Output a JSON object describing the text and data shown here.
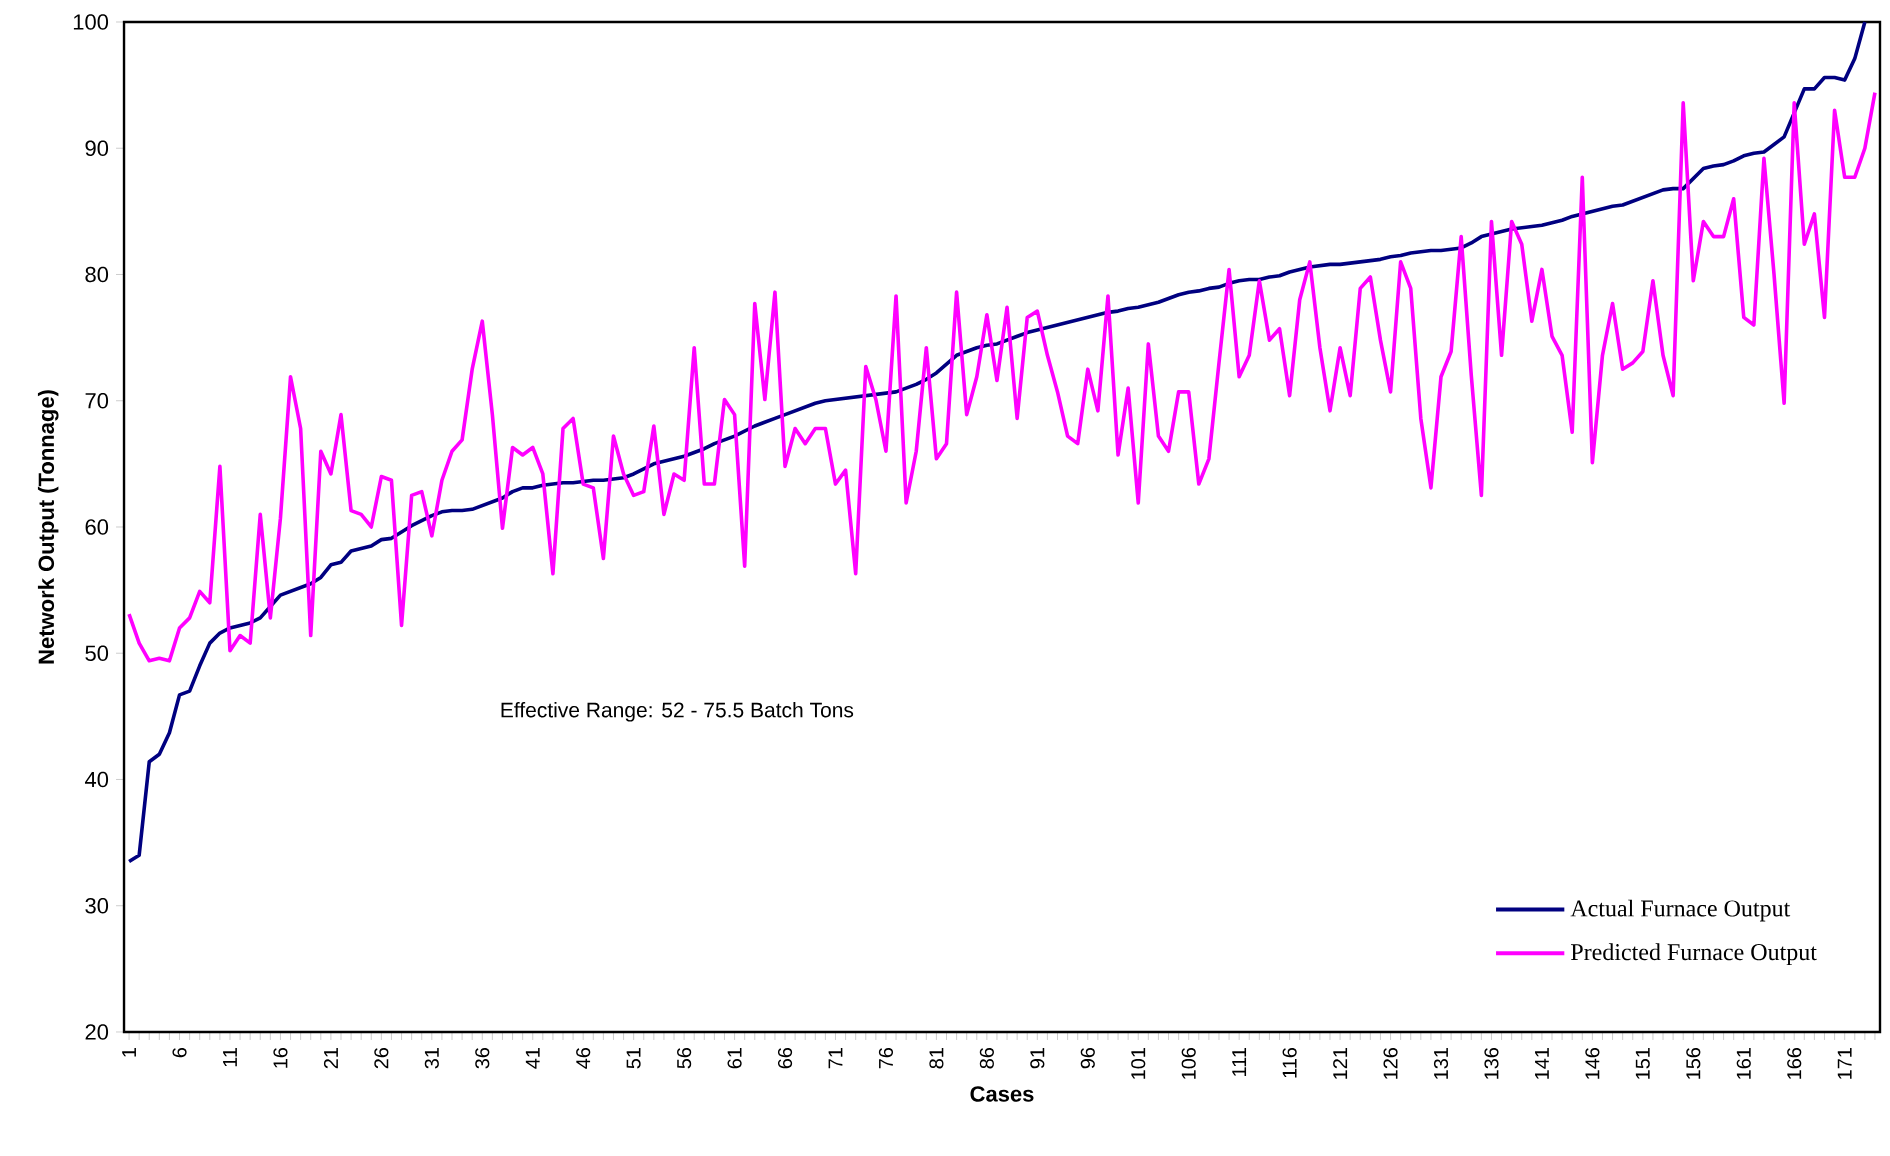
{
  "chart_data": {
    "type": "line",
    "xlabel": "Cases",
    "ylabel": "Network Output (Tonnage)",
    "categories": [
      "1",
      null,
      null,
      null,
      null,
      "6",
      null,
      null,
      null,
      null,
      "11",
      null,
      null,
      null,
      null,
      "16",
      null,
      null,
      null,
      null,
      "21",
      null,
      null,
      null,
      null,
      "26",
      null,
      null,
      null,
      null,
      "31",
      null,
      null,
      null,
      null,
      "36",
      null,
      null,
      null,
      null,
      "41",
      null,
      null,
      null,
      null,
      "46",
      null,
      null,
      null,
      null,
      "51",
      null,
      null,
      null,
      null,
      "56",
      null,
      null,
      null,
      null,
      "61",
      null,
      null,
      null,
      null,
      "66",
      null,
      null,
      null,
      null,
      "71",
      null,
      null,
      null,
      null,
      "76",
      null,
      null,
      null,
      null,
      "81",
      null,
      null,
      null,
      null,
      "86",
      null,
      null,
      null,
      null,
      "91",
      null,
      null,
      null,
      null,
      "96",
      null,
      null,
      null,
      null,
      "101",
      null,
      null,
      null,
      null,
      "106",
      null,
      null,
      null,
      null,
      "111",
      null,
      null,
      null,
      null,
      "116",
      null,
      null,
      null,
      null,
      "121",
      null,
      null,
      null,
      null,
      "126",
      null,
      null,
      null,
      null,
      "131",
      null,
      null,
      null,
      null,
      "136",
      null,
      null,
      null,
      null,
      "141",
      null,
      null,
      null,
      null,
      "146",
      null,
      null,
      null,
      null,
      "151",
      null,
      null,
      null,
      null,
      "156",
      null,
      null,
      null,
      null,
      "161",
      null,
      null,
      null,
      null,
      "166",
      null,
      null,
      null,
      null,
      "171",
      null,
      null,
      null
    ],
    "series": [
      {
        "name": "Actual Furnace Output",
        "color": "#000080",
        "values": [
          33.5,
          34,
          41.4,
          42,
          43.7,
          46.7,
          47,
          49,
          50.8,
          51.6,
          52,
          52.2,
          52.4,
          52.8,
          53.7,
          54.6,
          54.9,
          55.2,
          55.5,
          56,
          57,
          57.2,
          58.1,
          58.3,
          58.5,
          59,
          59.1,
          59.6,
          60.1,
          60.5,
          60.9,
          61.2,
          61.3,
          61.3,
          61.4,
          61.7,
          62,
          62.3,
          62.8,
          63.1,
          63.1,
          63.3,
          63.4,
          63.5,
          63.5,
          63.6,
          63.7,
          63.7,
          63.8,
          63.9,
          64.2,
          64.6,
          65,
          65.2,
          65.4,
          65.6,
          65.9,
          66.2,
          66.6,
          66.9,
          67.2,
          67.6,
          68,
          68.3,
          68.6,
          68.9,
          69.2,
          69.5,
          69.8,
          70,
          70.1,
          70.2,
          70.3,
          70.4,
          70.5,
          70.6,
          70.7,
          71,
          71.3,
          71.7,
          72.2,
          72.9,
          73.6,
          73.9,
          74.2,
          74.4,
          74.5,
          74.8,
          75.1,
          75.4,
          75.6,
          75.8,
          76,
          76.2,
          76.4,
          76.6,
          76.8,
          77,
          77.1,
          77.3,
          77.4,
          77.6,
          77.8,
          78.1,
          78.4,
          78.6,
          78.7,
          78.9,
          79,
          79.3,
          79.5,
          79.6,
          79.6,
          79.8,
          79.9,
          80.2,
          80.4,
          80.6,
          80.7,
          80.8,
          80.8,
          80.9,
          81,
          81.1,
          81.2,
          81.4,
          81.5,
          81.7,
          81.8,
          81.9,
          81.9,
          82,
          82.1,
          82.5,
          83,
          83.2,
          83.4,
          83.6,
          83.7,
          83.8,
          83.9,
          84.1,
          84.3,
          84.6,
          84.8,
          85,
          85.2,
          85.4,
          85.5,
          85.8,
          86.1,
          86.4,
          86.7,
          86.8,
          86.8,
          87.6,
          88.4,
          88.6,
          88.7,
          89,
          89.4,
          89.6,
          89.7,
          90.3,
          90.9,
          92.8,
          94.7,
          94.7,
          95.6,
          95.6,
          95.4,
          97.1,
          100,
          null
        ]
      },
      {
        "name": "Predicted Furnace Output",
        "color": "#ff00ff",
        "values": [
          53.1,
          50.8,
          49.4,
          49.6,
          49.4,
          52,
          52.8,
          54.9,
          54,
          64.8,
          50.2,
          51.4,
          50.8,
          61,
          52.8,
          60.7,
          71.9,
          67.8,
          51.4,
          66,
          64.2,
          68.9,
          61.3,
          61,
          60,
          64,
          63.7,
          52.2,
          62.5,
          62.8,
          59.3,
          63.7,
          66,
          66.9,
          72.5,
          76.3,
          68.9,
          59.9,
          66.3,
          65.7,
          66.3,
          64.2,
          56.3,
          67.8,
          68.6,
          63.4,
          63.1,
          57.5,
          67.2,
          64.2,
          62.5,
          62.8,
          68,
          61,
          64.2,
          63.7,
          74.2,
          63.4,
          63.4,
          70.1,
          68.9,
          56.9,
          77.7,
          70.1,
          78.6,
          64.8,
          67.8,
          66.6,
          67.8,
          67.8,
          63.4,
          64.5,
          56.3,
          72.7,
          70.1,
          66,
          78.3,
          61.9,
          66,
          74.2,
          65.4,
          66.6,
          78.6,
          68.9,
          71.9,
          76.8,
          71.6,
          77.4,
          68.6,
          76.6,
          77.1,
          73.6,
          70.7,
          67.2,
          66.6,
          72.5,
          69.2,
          78.3,
          65.7,
          71,
          61.9,
          74.5,
          67.2,
          66,
          70.7,
          70.7,
          63.4,
          65.4,
          73,
          80.4,
          71.9,
          73.6,
          79.5,
          74.8,
          75.7,
          70.4,
          78,
          81,
          74.2,
          69.2,
          74.2,
          70.4,
          78.9,
          79.8,
          74.8,
          70.7,
          81,
          78.9,
          68.6,
          63.1,
          71.9,
          73.9,
          83,
          72,
          62.5,
          84.2,
          73.6,
          84.2,
          82.4,
          76.3,
          80.4,
          75.1,
          73.6,
          67.5,
          87.7,
          65.1,
          73.6,
          77.7,
          72.5,
          73,
          73.9,
          79.5,
          73.6,
          70.4,
          93.6,
          79.5,
          84.2,
          83,
          83,
          86,
          76.6,
          76,
          89.2,
          80,
          69.8,
          93.6,
          82.4,
          84.8,
          76.6,
          93,
          87.7,
          87.7,
          90,
          94.4
        ]
      }
    ],
    "ylim": [
      20,
      100
    ],
    "yticks": [
      20,
      30,
      40,
      50,
      60,
      70,
      80,
      90,
      100
    ],
    "legend": "bottom right",
    "line_style": "solid",
    "annotations": [
      "Effective Range:  52 - 75.5 Batch Tons"
    ]
  }
}
